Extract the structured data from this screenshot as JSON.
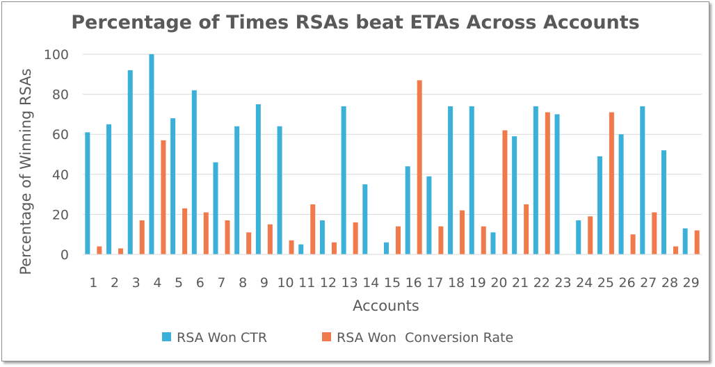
{
  "chart_data": {
    "type": "bar",
    "title": "Percentage of Times RSAs beat ETAs Across Accounts",
    "xlabel": "Accounts",
    "ylabel": "Percentage of Winning RSAs",
    "ylim": [
      0,
      100
    ],
    "yticks": [
      "0",
      "20",
      "40",
      "60",
      "80",
      "100"
    ],
    "grid": true,
    "legend_position": "bottom",
    "categories": [
      "1",
      "2",
      "3",
      "4",
      "5",
      "6",
      "7",
      "8",
      "9",
      "10",
      "11",
      "12",
      "13",
      "14",
      "15",
      "16",
      "17",
      "18",
      "19",
      "20",
      "21",
      "22",
      "23",
      "24",
      "25",
      "26",
      "27",
      "28",
      "29"
    ],
    "series": [
      {
        "name": "RSA Won CTR",
        "color": "#3bb0d8",
        "values": [
          61,
          65,
          92,
          100,
          68,
          82,
          46,
          64,
          75,
          64,
          5,
          17,
          74,
          35,
          6,
          44,
          39,
          74,
          74,
          11,
          59,
          74,
          70,
          17,
          49,
          60,
          74,
          52,
          13
        ]
      },
      {
        "name": "RSA Won  Conversion Rate",
        "color": "#f07a4b",
        "values": [
          4,
          3,
          17,
          57,
          23,
          21,
          17,
          11,
          15,
          7,
          25,
          6,
          16,
          0,
          14,
          87,
          14,
          22,
          14,
          62,
          25,
          71,
          0,
          19,
          71,
          10,
          21,
          4,
          12
        ]
      }
    ]
  }
}
